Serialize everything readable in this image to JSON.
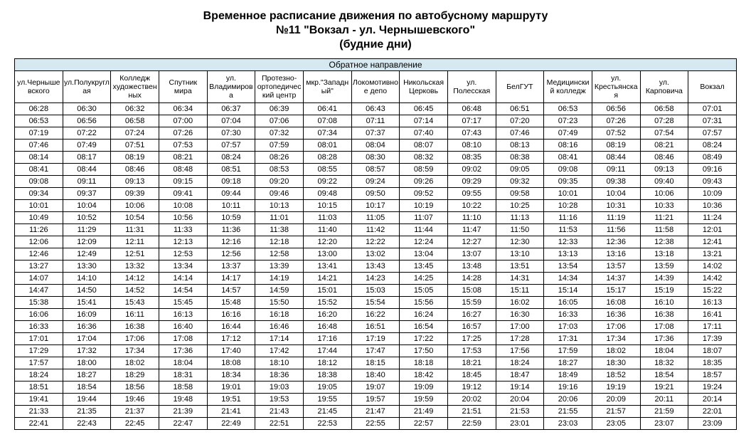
{
  "title_lines": [
    "Временное расписание движения по автобусному маршруту",
    "№11 \"Вокзал - ул. Чернышевского\"",
    "(будние дни)"
  ],
  "direction_header": "Обратное направление",
  "header_bg": "#d6e9f0",
  "border_color": "#000000",
  "stops": [
    "ул.Чернышевского",
    "ул.Полукруглая",
    "Колледж художественных",
    "Спутник мира",
    "ул. Владимирова",
    "Протезно-ортопедический центр",
    "мкр.\"Западный\"",
    "Локомотивное депо",
    "Никольская Церковь",
    "ул. Полесская",
    "БелГУТ",
    "Медицинский колледж",
    "ул. Крестьянская",
    "ул. Карповича",
    "Вокзал"
  ],
  "rows": [
    [
      "06:28",
      "06:30",
      "06:32",
      "06:34",
      "06:37",
      "06:39",
      "06:41",
      "06:43",
      "06:45",
      "06:48",
      "06:51",
      "06:53",
      "06:56",
      "06:58",
      "07:01"
    ],
    [
      "06:53",
      "06:56",
      "06:58",
      "07:00",
      "07:04",
      "07:06",
      "07:08",
      "07:11",
      "07:14",
      "07:17",
      "07:20",
      "07:23",
      "07:26",
      "07:28",
      "07:31"
    ],
    [
      "07:19",
      "07:22",
      "07:24",
      "07:26",
      "07:30",
      "07:32",
      "07:34",
      "07:37",
      "07:40",
      "07:43",
      "07:46",
      "07:49",
      "07:52",
      "07:54",
      "07:57"
    ],
    [
      "07:46",
      "07:49",
      "07:51",
      "07:53",
      "07:57",
      "07:59",
      "08:01",
      "08:04",
      "08:07",
      "08:10",
      "08:13",
      "08:16",
      "08:19",
      "08:21",
      "08:24"
    ],
    [
      "08:14",
      "08:17",
      "08:19",
      "08:21",
      "08:24",
      "08:26",
      "08:28",
      "08:30",
      "08:32",
      "08:35",
      "08:38",
      "08:41",
      "08:44",
      "08:46",
      "08:49"
    ],
    [
      "08:41",
      "08:44",
      "08:46",
      "08:48",
      "08:51",
      "08:53",
      "08:55",
      "08:57",
      "08:59",
      "09:02",
      "09:05",
      "09:08",
      "09:11",
      "09:13",
      "09:16"
    ],
    [
      "09:08",
      "09:11",
      "09:13",
      "09:15",
      "09:18",
      "09:20",
      "09:22",
      "09:24",
      "09:26",
      "09:29",
      "09:32",
      "09:35",
      "09:38",
      "09:40",
      "09:43"
    ],
    [
      "09:34",
      "09:37",
      "09:39",
      "09:41",
      "09:44",
      "09:46",
      "09:48",
      "09:50",
      "09:52",
      "09:55",
      "09:58",
      "10:01",
      "10:04",
      "10:06",
      "10:09"
    ],
    [
      "10:01",
      "10:04",
      "10:06",
      "10:08",
      "10:11",
      "10:13",
      "10:15",
      "10:17",
      "10:19",
      "10:22",
      "10:25",
      "10:28",
      "10:31",
      "10:33",
      "10:36"
    ],
    [
      "10:49",
      "10:52",
      "10:54",
      "10:56",
      "10:59",
      "11:01",
      "11:03",
      "11:05",
      "11:07",
      "11:10",
      "11:13",
      "11:16",
      "11:19",
      "11:21",
      "11:24"
    ],
    [
      "11:26",
      "11:29",
      "11:31",
      "11:33",
      "11:36",
      "11:38",
      "11:40",
      "11:42",
      "11:44",
      "11:47",
      "11:50",
      "11:53",
      "11:56",
      "11:58",
      "12:01"
    ],
    [
      "12:06",
      "12:09",
      "12:11",
      "12:13",
      "12:16",
      "12:18",
      "12:20",
      "12:22",
      "12:24",
      "12:27",
      "12:30",
      "12:33",
      "12:36",
      "12:38",
      "12:41"
    ],
    [
      "12:46",
      "12:49",
      "12:51",
      "12:53",
      "12:56",
      "12:58",
      "13:00",
      "13:02",
      "13:04",
      "13:07",
      "13:10",
      "13:13",
      "13:16",
      "13:18",
      "13:21"
    ],
    [
      "13:27",
      "13:30",
      "13:32",
      "13:34",
      "13:37",
      "13:39",
      "13:41",
      "13:43",
      "13:45",
      "13:48",
      "13:51",
      "13:54",
      "13:57",
      "13:59",
      "14:02"
    ],
    [
      "14:07",
      "14:10",
      "14:12",
      "14:14",
      "14:17",
      "14:19",
      "14:21",
      "14:23",
      "14:25",
      "14:28",
      "14:31",
      "14:34",
      "14:37",
      "14:39",
      "14:42"
    ],
    [
      "14:47",
      "14:50",
      "14:52",
      "14:54",
      "14:57",
      "14:59",
      "15:01",
      "15:03",
      "15:05",
      "15:08",
      "15:11",
      "15:14",
      "15:17",
      "15:19",
      "15:22"
    ],
    [
      "15:38",
      "15:41",
      "15:43",
      "15:45",
      "15:48",
      "15:50",
      "15:52",
      "15:54",
      "15:56",
      "15:59",
      "16:02",
      "16:05",
      "16:08",
      "16:10",
      "16:13"
    ],
    [
      "16:06",
      "16:09",
      "16:11",
      "16:13",
      "16:16",
      "16:18",
      "16:20",
      "16:22",
      "16:24",
      "16:27",
      "16:30",
      "16:33",
      "16:36",
      "16:38",
      "16:41"
    ],
    [
      "16:33",
      "16:36",
      "16:38",
      "16:40",
      "16:44",
      "16:46",
      "16:48",
      "16:51",
      "16:54",
      "16:57",
      "17:00",
      "17:03",
      "17:06",
      "17:08",
      "17:11"
    ],
    [
      "17:01",
      "17:04",
      "17:06",
      "17:08",
      "17:12",
      "17:14",
      "17:16",
      "17:19",
      "17:22",
      "17:25",
      "17:28",
      "17:31",
      "17:34",
      "17:36",
      "17:39"
    ],
    [
      "17:29",
      "17:32",
      "17:34",
      "17:36",
      "17:40",
      "17:42",
      "17:44",
      "17:47",
      "17:50",
      "17:53",
      "17:56",
      "17:59",
      "18:02",
      "18:04",
      "18:07"
    ],
    [
      "17:57",
      "18:00",
      "18:02",
      "18:04",
      "18:08",
      "18:10",
      "18:12",
      "18:15",
      "18:18",
      "18:21",
      "18:24",
      "18:27",
      "18:30",
      "18:32",
      "18:35"
    ],
    [
      "18:24",
      "18:27",
      "18:29",
      "18:31",
      "18:34",
      "18:36",
      "18:38",
      "18:40",
      "18:42",
      "18:45",
      "18:47",
      "18:49",
      "18:52",
      "18:54",
      "18:57"
    ],
    [
      "18:51",
      "18:54",
      "18:56",
      "18:58",
      "19:01",
      "19:03",
      "19:05",
      "19:07",
      "19:09",
      "19:12",
      "19:14",
      "19:16",
      "19:19",
      "19:21",
      "19:24"
    ],
    [
      "19:41",
      "19:44",
      "19:46",
      "19:48",
      "19:51",
      "19:53",
      "19:55",
      "19:57",
      "19:59",
      "20:02",
      "20:04",
      "20:06",
      "20:09",
      "20:11",
      "20:14"
    ],
    [
      "21:33",
      "21:35",
      "21:37",
      "21:39",
      "21:41",
      "21:43",
      "21:45",
      "21:47",
      "21:49",
      "21:51",
      "21:53",
      "21:55",
      "21:57",
      "21:59",
      "22:01"
    ],
    [
      "22:41",
      "22:43",
      "22:45",
      "22:47",
      "22:49",
      "22:51",
      "22:53",
      "22:55",
      "22:57",
      "22:59",
      "23:01",
      "23:03",
      "23:05",
      "23:07",
      "23:09"
    ]
  ]
}
